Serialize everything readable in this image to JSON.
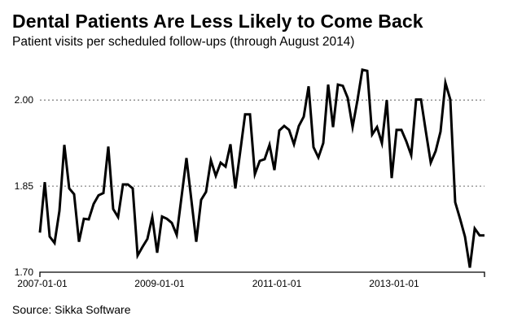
{
  "chart_data": {
    "type": "line",
    "title": "Dental Patients Are Less Likely to Come Back",
    "subtitle": "Patient visits per scheduled follow-ups (through August 2014)",
    "source": "Source: Sikka Software",
    "xlabel": "",
    "ylabel": "",
    "x_start": "2007-01",
    "x_frequency": "monthly",
    "x_end": "2014-08",
    "x_ticks": [
      "2007-01-01",
      "2009-01-01",
      "2011-01-01",
      "2013-01-01"
    ],
    "y_ticks": [
      "1.70",
      "1.85",
      "2.00"
    ],
    "ylim": [
      1.7,
      2.06
    ],
    "grid": "horizontal dotted at 1.85 and 2.00",
    "legend": "none",
    "series": [
      {
        "name": "Patient visits per scheduled follow-ups",
        "color": "#000000",
        "values": [
          1.769,
          1.857,
          1.762,
          1.751,
          1.807,
          1.922,
          1.846,
          1.836,
          1.753,
          1.793,
          1.792,
          1.819,
          1.834,
          1.838,
          1.919,
          1.81,
          1.796,
          1.853,
          1.853,
          1.846,
          1.729,
          1.744,
          1.758,
          1.796,
          1.734,
          1.797,
          1.793,
          1.786,
          1.765,
          1.832,
          1.899,
          1.826,
          1.753,
          1.826,
          1.84,
          1.895,
          1.868,
          1.891,
          1.884,
          1.923,
          1.846,
          1.91,
          1.975,
          1.975,
          1.871,
          1.894,
          1.897,
          1.922,
          1.878,
          1.947,
          1.955,
          1.948,
          1.923,
          1.955,
          1.971,
          2.024,
          1.918,
          1.9,
          1.925,
          2.027,
          1.953,
          2.027,
          2.025,
          2.004,
          1.953,
          2.0,
          2.053,
          2.051,
          1.94,
          1.953,
          1.925,
          2.0,
          1.864,
          1.948,
          1.948,
          1.928,
          1.904,
          2.001,
          2.001,
          1.945,
          1.891,
          1.911,
          1.945,
          2.03,
          2.001,
          1.822,
          1.793,
          1.762,
          1.708,
          1.776,
          1.764,
          1.764
        ]
      }
    ]
  },
  "colors": {
    "line": "#000000",
    "grid": "#888888",
    "axis": "#000000",
    "background": "#ffffff"
  }
}
